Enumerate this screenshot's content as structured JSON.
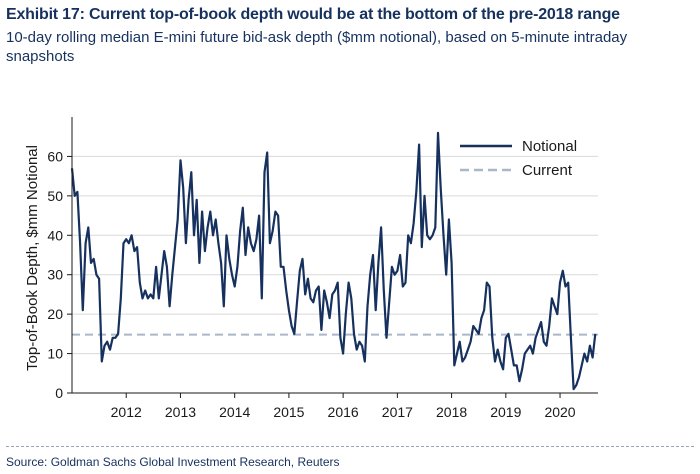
{
  "header": {
    "title": "Exhibit 17: Current top-of-book depth would be at the bottom of the pre-2018 range",
    "subtitle": "10-day rolling median E-mini future bid-ask depth ($mm notional), based on 5-minute intraday snapshots"
  },
  "footer": {
    "source": "Source: Goldman Sachs Global Investment Research, Reuters"
  },
  "colors": {
    "notional": "#16315e",
    "current": "#a9b7c9",
    "grid": "#d9d9d9"
  },
  "chart_data": {
    "type": "line",
    "ylabel": "Top-of-Book Depth, $mm Notional",
    "ylim": [
      0,
      70
    ],
    "yticks": [
      0,
      10,
      20,
      30,
      40,
      50,
      60
    ],
    "xlim": [
      2011.0,
      2020.7
    ],
    "xticks": [
      "2012",
      "2013",
      "2014",
      "2015",
      "2016",
      "2017",
      "2018",
      "2019",
      "2020"
    ],
    "grid": "horizontal",
    "legend": {
      "placement": "top-right",
      "entries": [
        "Notional",
        "Current"
      ]
    },
    "current_level": 14.8,
    "series": [
      {
        "name": "Notional",
        "x": [
          2011.0,
          2011.05,
          2011.1,
          2011.15,
          2011.2,
          2011.25,
          2011.3,
          2011.35,
          2011.4,
          2011.45,
          2011.5,
          2011.55,
          2011.6,
          2011.65,
          2011.7,
          2011.75,
          2011.8,
          2011.85,
          2011.9,
          2011.95,
          2012.0,
          2012.05,
          2012.1,
          2012.15,
          2012.2,
          2012.25,
          2012.3,
          2012.35,
          2012.4,
          2012.45,
          2012.5,
          2012.55,
          2012.6,
          2012.65,
          2012.7,
          2012.75,
          2012.8,
          2012.85,
          2012.9,
          2012.95,
          2013.0,
          2013.05,
          2013.1,
          2013.15,
          2013.2,
          2013.25,
          2013.3,
          2013.35,
          2013.4,
          2013.45,
          2013.5,
          2013.55,
          2013.6,
          2013.65,
          2013.7,
          2013.75,
          2013.8,
          2013.85,
          2013.9,
          2013.95,
          2014.0,
          2014.05,
          2014.1,
          2014.15,
          2014.2,
          2014.25,
          2014.3,
          2014.35,
          2014.4,
          2014.45,
          2014.5,
          2014.55,
          2014.6,
          2014.65,
          2014.7,
          2014.75,
          2014.8,
          2014.85,
          2014.9,
          2014.95,
          2015.0,
          2015.05,
          2015.1,
          2015.15,
          2015.2,
          2015.25,
          2015.3,
          2015.35,
          2015.4,
          2015.45,
          2015.5,
          2015.55,
          2015.6,
          2015.65,
          2015.7,
          2015.75,
          2015.8,
          2015.85,
          2015.9,
          2015.95,
          2016.0,
          2016.05,
          2016.1,
          2016.15,
          2016.2,
          2016.25,
          2016.3,
          2016.35,
          2016.4,
          2016.45,
          2016.5,
          2016.55,
          2016.6,
          2016.65,
          2016.7,
          2016.75,
          2016.8,
          2016.85,
          2016.9,
          2016.95,
          2017.0,
          2017.05,
          2017.1,
          2017.15,
          2017.2,
          2017.25,
          2017.3,
          2017.35,
          2017.4,
          2017.45,
          2017.5,
          2017.55,
          2017.6,
          2017.65,
          2017.7,
          2017.75,
          2017.8,
          2017.85,
          2017.9,
          2017.95,
          2018.0,
          2018.05,
          2018.1,
          2018.15,
          2018.2,
          2018.25,
          2018.3,
          2018.35,
          2018.4,
          2018.45,
          2018.5,
          2018.55,
          2018.6,
          2018.65,
          2018.7,
          2018.75,
          2018.8,
          2018.85,
          2018.9,
          2018.95,
          2019.0,
          2019.05,
          2019.1,
          2019.15,
          2019.2,
          2019.25,
          2019.3,
          2019.35,
          2019.4,
          2019.45,
          2019.5,
          2019.55,
          2019.6,
          2019.65,
          2019.7,
          2019.75,
          2019.8,
          2019.85,
          2019.9,
          2019.95,
          2020.0,
          2020.05,
          2020.1,
          2020.15,
          2020.2,
          2020.25,
          2020.3,
          2020.35,
          2020.4,
          2020.45,
          2020.5,
          2020.55,
          2020.6,
          2020.65
        ],
        "values": [
          57,
          50,
          51,
          38,
          21,
          38,
          42,
          33,
          34,
          30,
          29,
          8,
          12,
          13,
          11,
          14,
          14,
          15,
          24,
          38,
          39,
          38,
          40,
          36,
          37,
          28,
          24,
          26,
          24,
          25,
          24,
          32,
          24,
          30,
          36,
          32,
          22,
          30,
          37,
          44,
          59,
          52,
          38,
          49,
          56,
          40,
          49,
          33,
          46,
          36,
          42,
          46,
          40,
          44,
          38,
          33,
          22,
          40,
          34,
          30,
          27,
          32,
          41,
          47,
          35,
          42,
          38,
          36,
          39,
          45,
          24,
          56,
          61,
          38,
          41,
          46,
          45,
          32,
          32,
          26,
          21,
          17,
          15,
          23,
          31,
          34,
          25,
          29,
          24,
          23,
          26,
          27,
          16,
          26,
          23,
          19,
          25,
          26,
          28,
          14,
          10,
          20,
          28,
          24,
          15,
          11,
          13,
          12,
          8,
          22,
          30,
          35,
          21,
          33,
          42,
          26,
          14,
          23,
          32,
          30,
          31,
          35,
          27,
          28,
          40,
          38,
          43,
          51,
          63,
          37,
          50,
          40,
          39,
          40,
          42,
          66,
          52,
          40,
          30,
          44,
          33,
          7,
          10,
          13,
          8,
          9,
          11,
          13,
          17,
          16,
          15,
          19,
          21,
          28,
          27,
          14,
          8,
          11,
          8,
          6,
          14,
          15,
          11,
          7,
          7,
          3,
          6,
          10,
          11,
          12,
          10,
          14,
          16,
          18,
          13,
          12,
          17,
          24,
          22,
          20,
          28,
          31,
          27,
          28,
          14,
          1,
          2,
          4,
          7,
          10,
          8,
          12,
          9,
          15
        ]
      }
    ]
  }
}
